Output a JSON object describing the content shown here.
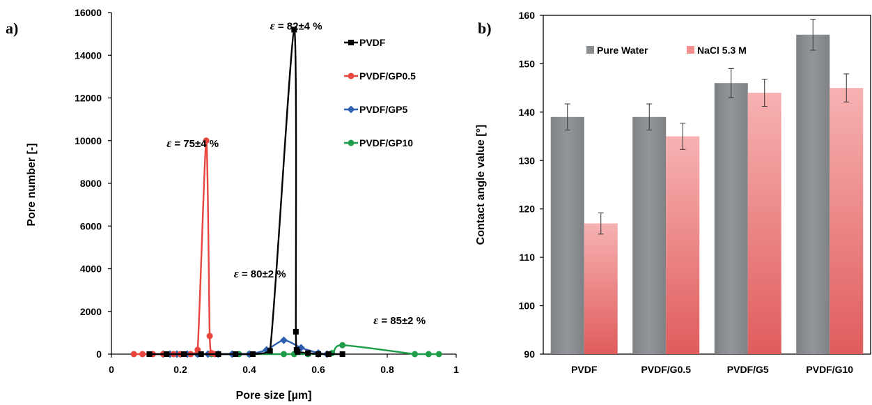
{
  "chart_data": [
    {
      "type": "line",
      "panel_label": "a)",
      "xlabel": "Pore size [µm]",
      "ylabel": "Pore number [-]",
      "xlim": [
        0,
        1
      ],
      "ylim": [
        0,
        16000
      ],
      "xticks": [
        "0",
        "0.2",
        "0.4",
        "0.6",
        "0.8",
        "1"
      ],
      "yticks": [
        "0",
        "2000",
        "4000",
        "6000",
        "8000",
        "10000",
        "12000",
        "14000",
        "16000"
      ],
      "legend_position": "top-right",
      "series": [
        {
          "name": "PVDF",
          "color": "#000000",
          "marker": "square",
          "x": [
            0.11,
            0.16,
            0.21,
            0.26,
            0.31,
            0.36,
            0.41,
            0.46,
            0.53,
            0.535,
            0.537,
            0.54,
            0.57,
            0.6,
            0.63,
            0.67
          ],
          "y": [
            0,
            0,
            0,
            0,
            0,
            0,
            0,
            150,
            15200,
            1050,
            200,
            100,
            50,
            0,
            0,
            0
          ]
        },
        {
          "name": "PVDF/GP0.5",
          "color": "#e8453c",
          "marker": "circle",
          "x": [
            0.065,
            0.09,
            0.12,
            0.15,
            0.18,
            0.2,
            0.23,
            0.25,
            0.275,
            0.285,
            0.29,
            0.3
          ],
          "y": [
            0,
            0,
            0,
            0,
            0,
            0,
            0,
            200,
            10000,
            850,
            50,
            0
          ]
        },
        {
          "name": "PVDF/GP5",
          "color": "#2e5fb0",
          "marker": "diamond",
          "x": [
            0.15,
            0.17,
            0.19,
            0.22,
            0.25,
            0.28,
            0.31,
            0.35,
            0.4,
            0.45,
            0.5,
            0.55,
            0.6,
            0.625
          ],
          "y": [
            0,
            0,
            0,
            0,
            0,
            0,
            0,
            0,
            0,
            200,
            650,
            300,
            50,
            0
          ]
        },
        {
          "name": "PVDF/GP10",
          "color": "#1f9e4a",
          "marker": "circle",
          "x": [
            0.25,
            0.29,
            0.31,
            0.37,
            0.4,
            0.5,
            0.53,
            0.57,
            0.64,
            0.67,
            0.88,
            0.92,
            0.95
          ],
          "y": [
            0,
            0,
            0,
            0,
            0,
            0,
            0,
            0,
            50,
            420,
            0,
            0,
            0
          ]
        }
      ],
      "annotations": [
        {
          "symbol": "ε",
          "text": " = 82±4 %",
          "x": 0.46,
          "y": 15200
        },
        {
          "symbol": "ε",
          "text": " = 75±4 %",
          "x": 0.16,
          "y": 9700
        },
        {
          "symbol": "ε",
          "text": " = 80±2 %",
          "x": 0.355,
          "y": 3600
        },
        {
          "symbol": "ε",
          "text": " = 85±2 %",
          "x": 0.76,
          "y": 1400
        }
      ]
    },
    {
      "type": "bar",
      "panel_label": "b)",
      "ylabel": "Contact angle value [°]",
      "ylim": [
        90,
        160
      ],
      "yticks": [
        "90",
        "100",
        "110",
        "120",
        "130",
        "140",
        "150",
        "160"
      ],
      "categories": [
        "PVDF",
        "PVDF/G0.5",
        "PVDF/G5",
        "PVDF/G10"
      ],
      "legend_position": "top-left",
      "series": [
        {
          "name": "Pure Water",
          "color": "#8a8d90",
          "values": [
            139,
            139,
            146,
            156
          ],
          "errors": [
            2.7,
            2.7,
            3,
            3.2
          ]
        },
        {
          "name": "NaCl 5.3 M",
          "color": "#f28e8e",
          "values": [
            117,
            135,
            144,
            145
          ],
          "errors": [
            2.2,
            2.7,
            2.8,
            2.9
          ]
        }
      ]
    }
  ]
}
